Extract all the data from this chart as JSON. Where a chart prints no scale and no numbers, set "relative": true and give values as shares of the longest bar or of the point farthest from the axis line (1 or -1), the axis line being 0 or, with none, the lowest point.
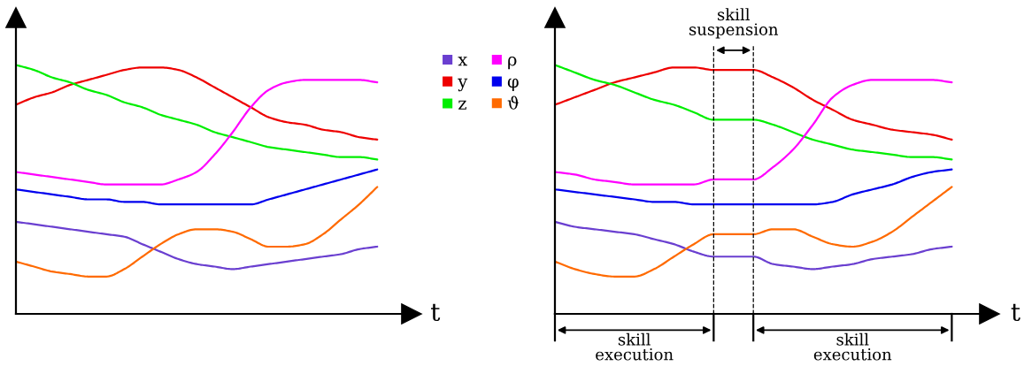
{
  "chart_data": [
    {
      "type": "line",
      "relative": true,
      "xlabel": "t",
      "legend": "right",
      "categories": [
        null,
        null,
        null,
        null,
        null,
        null,
        null,
        null,
        null,
        null,
        null,
        null,
        null,
        null,
        null,
        null,
        null,
        null,
        null,
        null,
        null
      ],
      "series": [
        {
          "name": "x",
          "color": "#6a3fd0",
          "values": [
            0.37,
            0.36,
            0.35,
            0.34,
            0.33,
            0.32,
            0.31,
            0.28,
            0.25,
            0.22,
            0.2,
            0.19,
            0.18,
            0.19,
            0.2,
            0.21,
            0.22,
            0.23,
            0.24,
            0.26,
            0.27
          ]
        },
        {
          "name": "y",
          "color": "#ee0000",
          "values": [
            0.84,
            0.87,
            0.89,
            0.92,
            0.94,
            0.96,
            0.98,
            0.99,
            0.99,
            0.98,
            0.95,
            0.91,
            0.87,
            0.83,
            0.79,
            0.77,
            0.76,
            0.74,
            0.73,
            0.71,
            0.7
          ]
        },
        {
          "name": "z",
          "color": "#00ee00",
          "values": [
            1.0,
            0.98,
            0.95,
            0.93,
            0.9,
            0.88,
            0.85,
            0.83,
            0.8,
            0.78,
            0.76,
            0.73,
            0.71,
            0.69,
            0.67,
            0.66,
            0.65,
            0.64,
            0.63,
            0.63,
            0.62
          ]
        },
        {
          "name": "ρ",
          "color": "#ff00ff",
          "values": [
            0.57,
            0.56,
            0.55,
            0.54,
            0.53,
            0.52,
            0.52,
            0.52,
            0.52,
            0.54,
            0.57,
            0.64,
            0.73,
            0.83,
            0.9,
            0.93,
            0.94,
            0.94,
            0.94,
            0.94,
            0.93
          ]
        },
        {
          "name": "φ",
          "color": "#0000ee",
          "values": [
            0.5,
            0.49,
            0.48,
            0.47,
            0.46,
            0.46,
            0.45,
            0.45,
            0.44,
            0.44,
            0.44,
            0.44,
            0.44,
            0.44,
            0.46,
            0.48,
            0.5,
            0.52,
            0.54,
            0.56,
            0.58
          ]
        },
        {
          "name": "ϑ",
          "color": "#ff6a00",
          "values": [
            0.21,
            0.19,
            0.17,
            0.16,
            0.15,
            0.15,
            0.18,
            0.23,
            0.28,
            0.32,
            0.34,
            0.34,
            0.33,
            0.3,
            0.27,
            0.27,
            0.28,
            0.32,
            0.38,
            0.44,
            0.51
          ]
        }
      ]
    },
    {
      "type": "line",
      "relative": true,
      "xlabel": "t",
      "categories": [
        null,
        null,
        null,
        null,
        null,
        null,
        null,
        null,
        null,
        null,
        null,
        null,
        null,
        null,
        null,
        null,
        null,
        null,
        null,
        null,
        null
      ],
      "annotations": [
        "skill\nsuspension",
        "skill\nexecution",
        "skill\nexecution"
      ],
      "series": [
        {
          "color": "#6a3fd0",
          "values": [
            0.37,
            0.35,
            0.34,
            0.33,
            0.32,
            0.3,
            0.28,
            0.25,
            0.23,
            0.23,
            0.23,
            0.2,
            0.19,
            0.18,
            0.19,
            0.2,
            0.22,
            0.23,
            0.24,
            0.26,
            0.27
          ]
        },
        {
          "color": "#ee0000",
          "values": [
            0.84,
            0.87,
            0.9,
            0.93,
            0.95,
            0.97,
            0.99,
            0.99,
            0.98,
            0.98,
            0.98,
            0.95,
            0.91,
            0.86,
            0.82,
            0.78,
            0.76,
            0.74,
            0.73,
            0.72,
            0.7
          ]
        },
        {
          "color": "#00ee00",
          "values": [
            1.0,
            0.97,
            0.94,
            0.92,
            0.89,
            0.86,
            0.84,
            0.81,
            0.78,
            0.78,
            0.78,
            0.76,
            0.73,
            0.7,
            0.68,
            0.66,
            0.65,
            0.64,
            0.63,
            0.63,
            0.62
          ]
        },
        {
          "color": "#ff00ff",
          "values": [
            0.57,
            0.56,
            0.54,
            0.53,
            0.52,
            0.52,
            0.52,
            0.52,
            0.54,
            0.54,
            0.54,
            0.59,
            0.66,
            0.76,
            0.87,
            0.92,
            0.94,
            0.94,
            0.94,
            0.94,
            0.93
          ]
        },
        {
          "color": "#0000ee",
          "values": [
            0.5,
            0.49,
            0.48,
            0.47,
            0.46,
            0.45,
            0.45,
            0.44,
            0.44,
            0.44,
            0.44,
            0.44,
            0.44,
            0.44,
            0.45,
            0.48,
            0.5,
            0.52,
            0.55,
            0.57,
            0.58
          ]
        },
        {
          "color": "#ff6a00",
          "values": [
            0.21,
            0.18,
            0.16,
            0.15,
            0.15,
            0.18,
            0.23,
            0.28,
            0.32,
            0.32,
            0.32,
            0.34,
            0.34,
            0.31,
            0.28,
            0.27,
            0.29,
            0.33,
            0.39,
            0.45,
            0.51
          ]
        }
      ]
    }
  ]
}
